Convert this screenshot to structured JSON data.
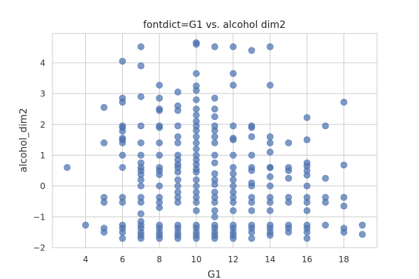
{
  "chart_data": {
    "type": "scatter",
    "title": "fontdict=G1 vs. alcohol dim2",
    "xlabel": "G1",
    "ylabel": "alcohol_dim2",
    "xlim": [
      2.2,
      19.8
    ],
    "ylim": [
      -2.0,
      4.95
    ],
    "xticks": [
      4,
      6,
      8,
      10,
      12,
      14,
      16,
      18
    ],
    "yticks": [
      -2,
      -1,
      0,
      1,
      2,
      3,
      4
    ],
    "grid": true,
    "marker_color": "#4c72b0",
    "points": [
      [
        3,
        0.6
      ],
      [
        4,
        -1.27
      ],
      [
        5,
        2.55
      ],
      [
        5,
        1.4
      ],
      [
        5,
        -0.37
      ],
      [
        5,
        -0.53
      ],
      [
        5,
        -1.37
      ],
      [
        5,
        -1.5
      ],
      [
        6,
        4.05
      ],
      [
        6,
        2.85
      ],
      [
        6,
        2.72
      ],
      [
        6,
        1.95
      ],
      [
        6,
        1.9
      ],
      [
        6,
        1.78
      ],
      [
        6,
        1.55
      ],
      [
        6,
        1.5
      ],
      [
        6,
        1.4
      ],
      [
        6,
        1.0
      ],
      [
        6,
        0.6
      ],
      [
        6,
        -0.37
      ],
      [
        6,
        -0.53
      ],
      [
        6,
        -1.27
      ],
      [
        6,
        -1.37
      ],
      [
        6,
        -1.5
      ],
      [
        6,
        -1.7
      ],
      [
        7,
        4.52
      ],
      [
        7,
        3.9
      ],
      [
        7,
        2.9
      ],
      [
        7,
        1.95
      ],
      [
        7,
        1.4
      ],
      [
        7,
        1.0
      ],
      [
        7,
        0.75
      ],
      [
        7,
        0.6
      ],
      [
        7,
        0.5
      ],
      [
        7,
        0.37
      ],
      [
        7,
        0.2
      ],
      [
        7,
        0.0
      ],
      [
        7,
        -0.37
      ],
      [
        7,
        -0.53
      ],
      [
        7,
        -0.9
      ],
      [
        7,
        -1.15
      ],
      [
        7,
        -1.27
      ],
      [
        7,
        -1.37
      ],
      [
        7,
        -1.5
      ],
      [
        7,
        -1.6
      ],
      [
        7,
        -1.7
      ],
      [
        8,
        3.27
      ],
      [
        8,
        2.85
      ],
      [
        8,
        2.5
      ],
      [
        8,
        2.45
      ],
      [
        8,
        1.95
      ],
      [
        8,
        1.9
      ],
      [
        8,
        1.4
      ],
      [
        8,
        1.0
      ],
      [
        8,
        0.6
      ],
      [
        8,
        0.5
      ],
      [
        8,
        0.37
      ],
      [
        8,
        0.0
      ],
      [
        8,
        -0.37
      ],
      [
        8,
        -0.53
      ],
      [
        8,
        -0.7
      ],
      [
        8,
        -1.27
      ],
      [
        8,
        -1.37
      ],
      [
        8,
        -1.5
      ],
      [
        8,
        -1.6
      ],
      [
        8,
        -1.7
      ],
      [
        9,
        3.05
      ],
      [
        9,
        2.6
      ],
      [
        9,
        2.45
      ],
      [
        9,
        1.95
      ],
      [
        9,
        1.6
      ],
      [
        9,
        1.4
      ],
      [
        9,
        1.0
      ],
      [
        9,
        0.85
      ],
      [
        9,
        0.7
      ],
      [
        9,
        0.6
      ],
      [
        9,
        0.45
      ],
      [
        9,
        0.2
      ],
      [
        9,
        0.0
      ],
      [
        9,
        -0.2
      ],
      [
        9,
        -0.37
      ],
      [
        9,
        -0.53
      ],
      [
        9,
        -1.27
      ],
      [
        9,
        -1.37
      ],
      [
        9,
        -1.5
      ],
      [
        9,
        -1.6
      ],
      [
        9,
        -1.7
      ],
      [
        10,
        4.65
      ],
      [
        10,
        4.6
      ],
      [
        10,
        3.65
      ],
      [
        10,
        3.25
      ],
      [
        10,
        3.1
      ],
      [
        10,
        2.8
      ],
      [
        10,
        2.5
      ],
      [
        10,
        2.3
      ],
      [
        10,
        2.1
      ],
      [
        10,
        1.95
      ],
      [
        10,
        1.8
      ],
      [
        10,
        1.6
      ],
      [
        10,
        1.4
      ],
      [
        10,
        1.2
      ],
      [
        10,
        1.0
      ],
      [
        10,
        0.85
      ],
      [
        10,
        0.7
      ],
      [
        10,
        0.55
      ],
      [
        10,
        0.45
      ],
      [
        10,
        0.2
      ],
      [
        10,
        0.0
      ],
      [
        10,
        -0.2
      ],
      [
        10,
        -0.37
      ],
      [
        10,
        -0.53
      ],
      [
        10,
        -0.8
      ],
      [
        10,
        -1.27
      ],
      [
        10,
        -1.37
      ],
      [
        10,
        -1.5
      ],
      [
        10,
        -1.6
      ],
      [
        10,
        -1.7
      ],
      [
        11,
        4.52
      ],
      [
        11,
        2.85
      ],
      [
        11,
        2.5
      ],
      [
        11,
        2.25
      ],
      [
        11,
        1.95
      ],
      [
        11,
        1.8
      ],
      [
        11,
        1.6
      ],
      [
        11,
        1.4
      ],
      [
        11,
        1.0
      ],
      [
        11,
        0.75
      ],
      [
        11,
        0.4
      ],
      [
        11,
        0.2
      ],
      [
        11,
        0.05
      ],
      [
        11,
        -0.2
      ],
      [
        11,
        -0.37
      ],
      [
        11,
        -0.53
      ],
      [
        11,
        -0.8
      ],
      [
        11,
        -1.0
      ],
      [
        11,
        -1.27
      ],
      [
        11,
        -1.37
      ],
      [
        11,
        -1.5
      ],
      [
        11,
        -1.6
      ],
      [
        11,
        -1.7
      ],
      [
        12,
        4.52
      ],
      [
        12,
        3.65
      ],
      [
        12,
        3.27
      ],
      [
        12,
        1.95
      ],
      [
        12,
        1.55
      ],
      [
        12,
        1.5
      ],
      [
        12,
        1.0
      ],
      [
        12,
        0.6
      ],
      [
        12,
        0.4
      ],
      [
        12,
        0.2
      ],
      [
        12,
        0.0
      ],
      [
        12,
        -0.2
      ],
      [
        12,
        -0.37
      ],
      [
        12,
        -0.53
      ],
      [
        12,
        -0.8
      ],
      [
        12,
        -1.27
      ],
      [
        12,
        -1.37
      ],
      [
        12,
        -1.5
      ],
      [
        12,
        -1.6
      ],
      [
        12,
        -1.7
      ],
      [
        13,
        4.4
      ],
      [
        13,
        1.95
      ],
      [
        13,
        1.9
      ],
      [
        13,
        1.6
      ],
      [
        13,
        1.0
      ],
      [
        13,
        0.6
      ],
      [
        13,
        0.5
      ],
      [
        13,
        0.1
      ],
      [
        13,
        0.0
      ],
      [
        13,
        -0.37
      ],
      [
        13,
        -0.53
      ],
      [
        13,
        -0.8
      ],
      [
        13,
        -1.27
      ],
      [
        13,
        -1.37
      ],
      [
        13,
        -1.5
      ],
      [
        13,
        -1.7
      ],
      [
        14,
        4.52
      ],
      [
        14,
        3.27
      ],
      [
        14,
        1.6
      ],
      [
        14,
        1.4
      ],
      [
        14,
        1.1
      ],
      [
        14,
        0.6
      ],
      [
        14,
        0.6
      ],
      [
        14,
        0.3
      ],
      [
        14,
        0.0
      ],
      [
        14,
        -0.37
      ],
      [
        14,
        -0.53
      ],
      [
        14,
        -0.8
      ],
      [
        14,
        -1.27
      ],
      [
        14,
        -1.37
      ],
      [
        14,
        -1.5
      ],
      [
        14,
        -1.6
      ],
      [
        15,
        1.4
      ],
      [
        15,
        0.6
      ],
      [
        15,
        0.5
      ],
      [
        15,
        0.25
      ],
      [
        15,
        -0.37
      ],
      [
        15,
        -0.53
      ],
      [
        15,
        -1.27
      ],
      [
        15,
        -1.37
      ],
      [
        15,
        -1.5
      ],
      [
        16,
        2.22
      ],
      [
        16,
        1.5
      ],
      [
        16,
        0.75
      ],
      [
        16,
        0.65
      ],
      [
        16,
        0.5
      ],
      [
        16,
        0.35
      ],
      [
        16,
        0.0
      ],
      [
        16,
        -0.37
      ],
      [
        16,
        -0.53
      ],
      [
        16,
        -0.8
      ],
      [
        16,
        -1.27
      ],
      [
        16,
        -1.37
      ],
      [
        16,
        -1.5
      ],
      [
        16,
        -1.7
      ],
      [
        17,
        1.95
      ],
      [
        17,
        0.25
      ],
      [
        17,
        -0.37
      ],
      [
        17,
        -0.53
      ],
      [
        17,
        -1.27
      ],
      [
        18,
        2.72
      ],
      [
        18,
        0.68
      ],
      [
        18,
        -0.37
      ],
      [
        18,
        -0.65
      ],
      [
        18,
        -1.37
      ],
      [
        18,
        -1.5
      ],
      [
        19,
        -1.27
      ],
      [
        19,
        -1.57
      ]
    ]
  }
}
